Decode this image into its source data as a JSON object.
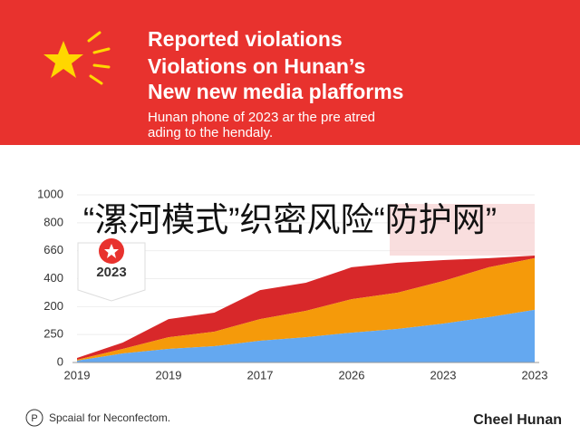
{
  "chart_data": {
    "type": "stacked-area",
    "title_lines": [
      "Reported violations",
      "Violations on Hunan’s",
      "New new media plafforms"
    ],
    "subtitle_lines": [
      "Hunan phone of 2023 ar the pre atred",
      "ading to the hendaly."
    ],
    "overlay_text": "“漯河模式”织密风险“防护网”",
    "badge": "2023",
    "y_axis_labels": [
      "1000",
      "800",
      "660",
      "400",
      "200",
      "250",
      "0"
    ],
    "ylim": [
      0,
      1000
    ],
    "categories": [
      "2019",
      null,
      "2019",
      null,
      "2017",
      null,
      "2026",
      null,
      "2023",
      null,
      "2023"
    ],
    "series": [
      {
        "name": "blue",
        "color": "#64a8f0",
        "values": [
          11,
          54,
          81,
          97,
          130,
          151,
          178,
          200,
          232,
          270,
          314
        ]
      },
      {
        "name": "orange",
        "color": "#f59a0a",
        "values": [
          5,
          27,
          70,
          87,
          129,
          157,
          200,
          216,
          254,
          298,
          308
        ]
      },
      {
        "name": "red",
        "color": "#d8282a",
        "values": [
          11,
          38,
          108,
          113,
          173,
          168,
          190,
          179,
          125,
          54,
          16
        ]
      }
    ],
    "footer_icon": "P",
    "footer_left": "Spcaial for Neconfectom.",
    "footer_right": "Cheel Hunan"
  }
}
